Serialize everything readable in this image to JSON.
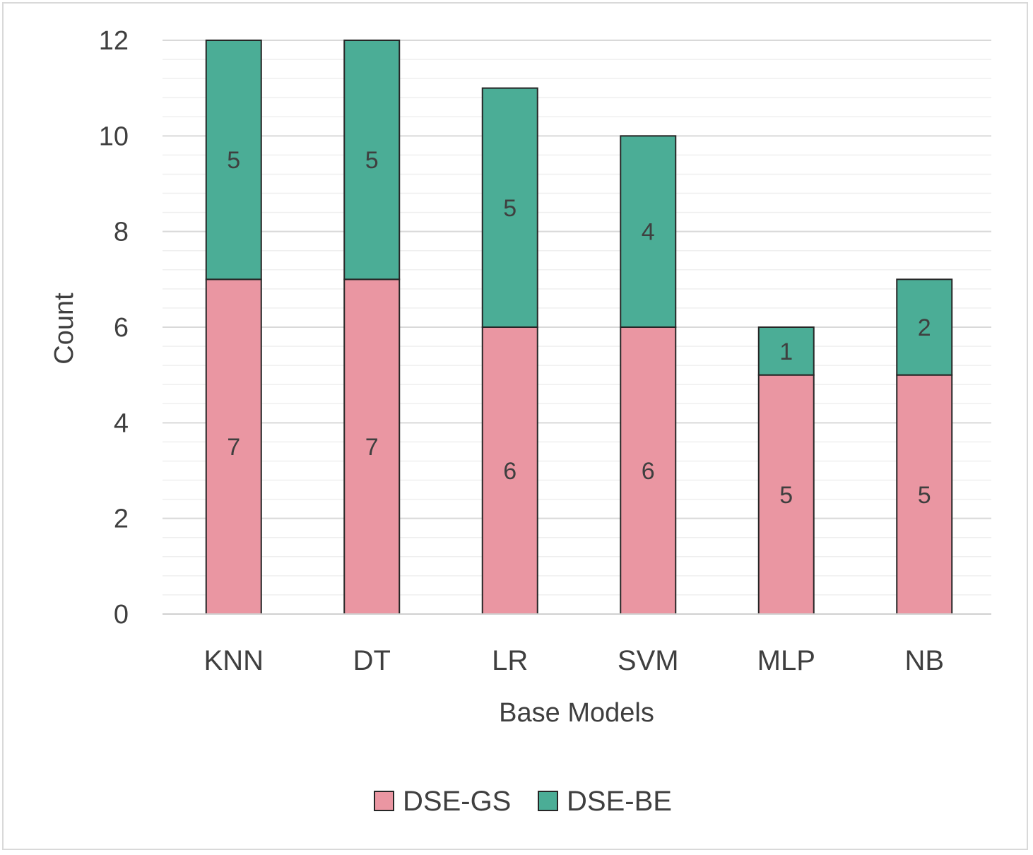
{
  "chart_data": {
    "type": "bar",
    "stacked": true,
    "categories": [
      "KNN",
      "DT",
      "LR",
      "SVM",
      "MLP",
      "NB"
    ],
    "series": [
      {
        "name": "DSE-GS",
        "values": [
          7,
          7,
          6,
          6,
          5,
          5
        ],
        "color": "#EA96A2"
      },
      {
        "name": "DSE-BE",
        "values": [
          5,
          5,
          5,
          4,
          1,
          2
        ],
        "color": "#4BAD96"
      }
    ],
    "xlabel": "Base Models",
    "ylabel": "Count",
    "ylim": [
      0,
      12
    ],
    "yticks": [
      "0",
      "2",
      "4",
      "6",
      "8",
      "10",
      "12"
    ],
    "grid": true,
    "minor_grid": true,
    "data_labels": true,
    "legend_position": "bottom"
  }
}
